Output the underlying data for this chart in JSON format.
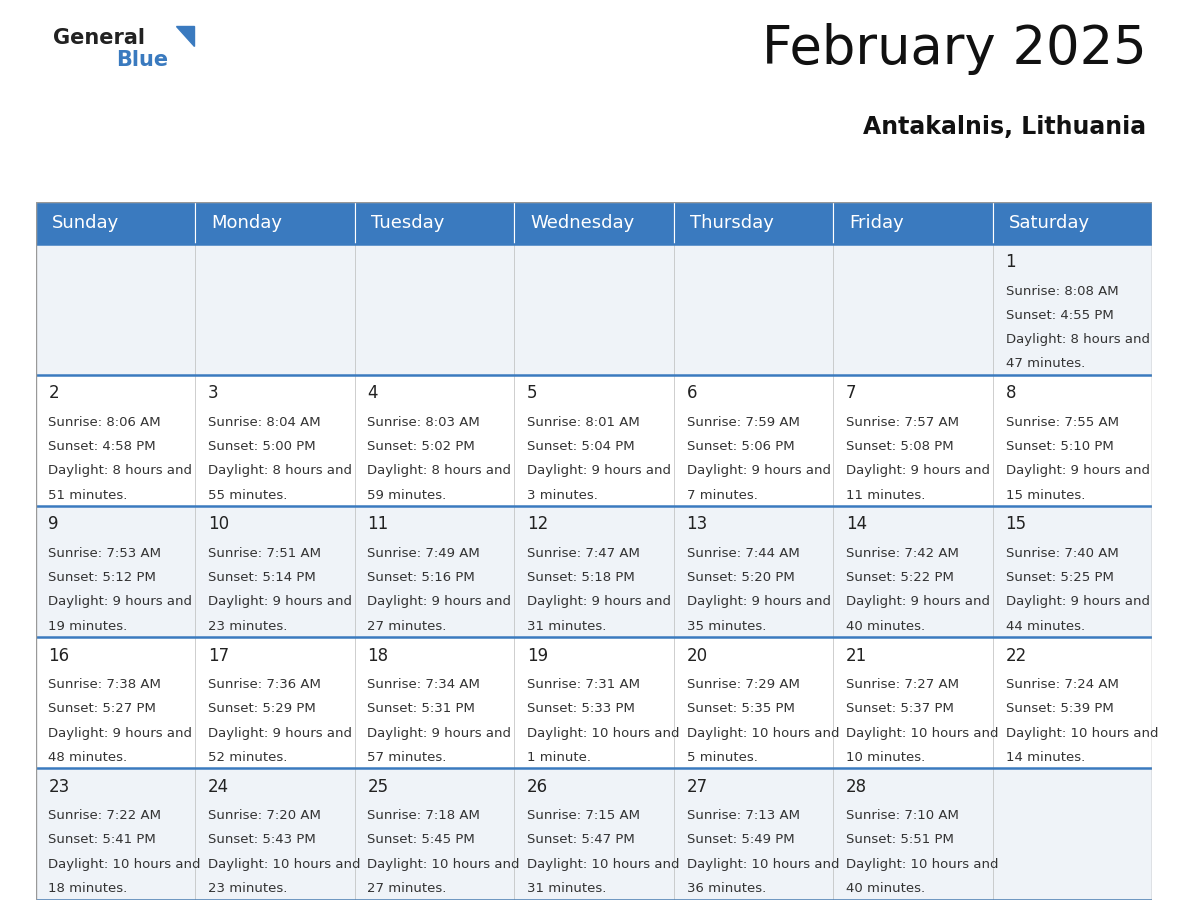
{
  "title": "February 2025",
  "subtitle": "Antakalnis, Lithuania",
  "header_color": "#3a7abf",
  "header_text_color": "#ffffff",
  "bg_color": "#ffffff",
  "cell_bg_row0": "#eff3f8",
  "cell_bg_row1": "#ffffff",
  "cell_bg_row2": "#eff3f8",
  "cell_bg_row3": "#ffffff",
  "cell_bg_row4": "#eff3f8",
  "day_headers": [
    "Sunday",
    "Monday",
    "Tuesday",
    "Wednesday",
    "Thursday",
    "Friday",
    "Saturday"
  ],
  "title_fontsize": 38,
  "subtitle_fontsize": 17,
  "header_fontsize": 13,
  "day_num_fontsize": 12,
  "info_fontsize": 9.5,
  "logo_general_fontsize": 15,
  "logo_blue_fontsize": 15,
  "days": [
    {
      "day": 1,
      "col": 6,
      "row": 0,
      "sunrise": "8:08 AM",
      "sunset": "4:55 PM",
      "daylight": "8 hours and 47 minutes"
    },
    {
      "day": 2,
      "col": 0,
      "row": 1,
      "sunrise": "8:06 AM",
      "sunset": "4:58 PM",
      "daylight": "8 hours and 51 minutes"
    },
    {
      "day": 3,
      "col": 1,
      "row": 1,
      "sunrise": "8:04 AM",
      "sunset": "5:00 PM",
      "daylight": "8 hours and 55 minutes"
    },
    {
      "day": 4,
      "col": 2,
      "row": 1,
      "sunrise": "8:03 AM",
      "sunset": "5:02 PM",
      "daylight": "8 hours and 59 minutes"
    },
    {
      "day": 5,
      "col": 3,
      "row": 1,
      "sunrise": "8:01 AM",
      "sunset": "5:04 PM",
      "daylight": "9 hours and 3 minutes"
    },
    {
      "day": 6,
      "col": 4,
      "row": 1,
      "sunrise": "7:59 AM",
      "sunset": "5:06 PM",
      "daylight": "9 hours and 7 minutes"
    },
    {
      "day": 7,
      "col": 5,
      "row": 1,
      "sunrise": "7:57 AM",
      "sunset": "5:08 PM",
      "daylight": "9 hours and 11 minutes"
    },
    {
      "day": 8,
      "col": 6,
      "row": 1,
      "sunrise": "7:55 AM",
      "sunset": "5:10 PM",
      "daylight": "9 hours and 15 minutes"
    },
    {
      "day": 9,
      "col": 0,
      "row": 2,
      "sunrise": "7:53 AM",
      "sunset": "5:12 PM",
      "daylight": "9 hours and 19 minutes"
    },
    {
      "day": 10,
      "col": 1,
      "row": 2,
      "sunrise": "7:51 AM",
      "sunset": "5:14 PM",
      "daylight": "9 hours and 23 minutes"
    },
    {
      "day": 11,
      "col": 2,
      "row": 2,
      "sunrise": "7:49 AM",
      "sunset": "5:16 PM",
      "daylight": "9 hours and 27 minutes"
    },
    {
      "day": 12,
      "col": 3,
      "row": 2,
      "sunrise": "7:47 AM",
      "sunset": "5:18 PM",
      "daylight": "9 hours and 31 minutes"
    },
    {
      "day": 13,
      "col": 4,
      "row": 2,
      "sunrise": "7:44 AM",
      "sunset": "5:20 PM",
      "daylight": "9 hours and 35 minutes"
    },
    {
      "day": 14,
      "col": 5,
      "row": 2,
      "sunrise": "7:42 AM",
      "sunset": "5:22 PM",
      "daylight": "9 hours and 40 minutes"
    },
    {
      "day": 15,
      "col": 6,
      "row": 2,
      "sunrise": "7:40 AM",
      "sunset": "5:25 PM",
      "daylight": "9 hours and 44 minutes"
    },
    {
      "day": 16,
      "col": 0,
      "row": 3,
      "sunrise": "7:38 AM",
      "sunset": "5:27 PM",
      "daylight": "9 hours and 48 minutes"
    },
    {
      "day": 17,
      "col": 1,
      "row": 3,
      "sunrise": "7:36 AM",
      "sunset": "5:29 PM",
      "daylight": "9 hours and 52 minutes"
    },
    {
      "day": 18,
      "col": 2,
      "row": 3,
      "sunrise": "7:34 AM",
      "sunset": "5:31 PM",
      "daylight": "9 hours and 57 minutes"
    },
    {
      "day": 19,
      "col": 3,
      "row": 3,
      "sunrise": "7:31 AM",
      "sunset": "5:33 PM",
      "daylight": "10 hours and 1 minute"
    },
    {
      "day": 20,
      "col": 4,
      "row": 3,
      "sunrise": "7:29 AM",
      "sunset": "5:35 PM",
      "daylight": "10 hours and 5 minutes"
    },
    {
      "day": 21,
      "col": 5,
      "row": 3,
      "sunrise": "7:27 AM",
      "sunset": "5:37 PM",
      "daylight": "10 hours and 10 minutes"
    },
    {
      "day": 22,
      "col": 6,
      "row": 3,
      "sunrise": "7:24 AM",
      "sunset": "5:39 PM",
      "daylight": "10 hours and 14 minutes"
    },
    {
      "day": 23,
      "col": 0,
      "row": 4,
      "sunrise": "7:22 AM",
      "sunset": "5:41 PM",
      "daylight": "10 hours and 18 minutes"
    },
    {
      "day": 24,
      "col": 1,
      "row": 4,
      "sunrise": "7:20 AM",
      "sunset": "5:43 PM",
      "daylight": "10 hours and 23 minutes"
    },
    {
      "day": 25,
      "col": 2,
      "row": 4,
      "sunrise": "7:18 AM",
      "sunset": "5:45 PM",
      "daylight": "10 hours and 27 minutes"
    },
    {
      "day": 26,
      "col": 3,
      "row": 4,
      "sunrise": "7:15 AM",
      "sunset": "5:47 PM",
      "daylight": "10 hours and 31 minutes"
    },
    {
      "day": 27,
      "col": 4,
      "row": 4,
      "sunrise": "7:13 AM",
      "sunset": "5:49 PM",
      "daylight": "10 hours and 36 minutes"
    },
    {
      "day": 28,
      "col": 5,
      "row": 4,
      "sunrise": "7:10 AM",
      "sunset": "5:51 PM",
      "daylight": "10 hours and 40 minutes"
    }
  ]
}
